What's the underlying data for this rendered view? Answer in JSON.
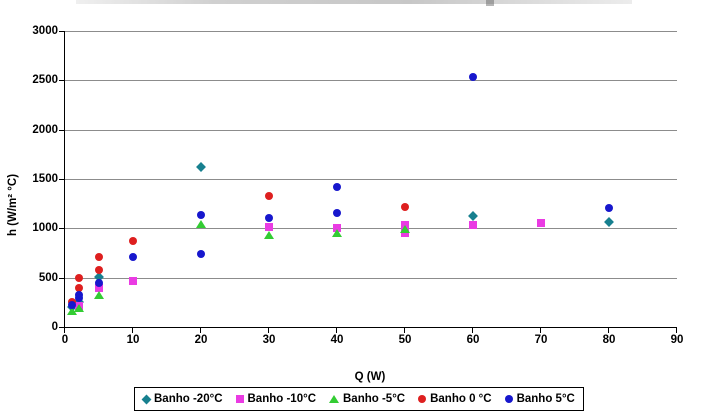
{
  "chart_data": {
    "type": "scatter",
    "xlabel": "Q (W)",
    "ylabel": "h (W/m² °C)",
    "xlim": [
      0,
      90
    ],
    "ylim": [
      0,
      3000
    ],
    "xticks": [
      0,
      10,
      20,
      30,
      40,
      50,
      60,
      70,
      80,
      90
    ],
    "yticks": [
      0,
      500,
      1000,
      1500,
      2000,
      2500,
      3000
    ],
    "grid": "horizontal gridlines every 500",
    "gridline_color": "#8c8c8c",
    "axis_color": "#000000",
    "legend_position": "bottom",
    "series": [
      {
        "name": "Banho -20°C",
        "marker": "diamond",
        "color": "#17808F",
        "points": [
          [
            1,
            200
          ],
          [
            2,
            255
          ],
          [
            5,
            505
          ],
          [
            20,
            1620
          ],
          [
            60,
            1130
          ],
          [
            80,
            1060
          ]
        ]
      },
      {
        "name": "Banho -10°C",
        "marker": "square",
        "color": "#EA3BE3",
        "points": [
          [
            2,
            210
          ],
          [
            5,
            395
          ],
          [
            10,
            470
          ],
          [
            30,
            1010
          ],
          [
            40,
            1000
          ],
          [
            50,
            1030
          ],
          [
            50,
            950
          ],
          [
            60,
            1030
          ],
          [
            70,
            1050
          ]
        ]
      },
      {
        "name": "Banho -5°C",
        "marker": "triangle",
        "color": "#33CC33",
        "points": [
          [
            1,
            160
          ],
          [
            2,
            195
          ],
          [
            5,
            325
          ],
          [
            20,
            1040
          ],
          [
            30,
            935
          ],
          [
            40,
            950
          ],
          [
            50,
            990
          ]
        ]
      },
      {
        "name": "Banho 0 °C",
        "marker": "circle",
        "color": "#DE1F1F",
        "points": [
          [
            1,
            250
          ],
          [
            2,
            495
          ],
          [
            2,
            395
          ],
          [
            5,
            710
          ],
          [
            5,
            580
          ],
          [
            10,
            875
          ],
          [
            30,
            1330
          ],
          [
            50,
            1215
          ]
        ]
      },
      {
        "name": "Banho 5°C",
        "marker": "circle",
        "color": "#1717CD",
        "points": [
          [
            1,
            225
          ],
          [
            2,
            325
          ],
          [
            2,
            290
          ],
          [
            5,
            445
          ],
          [
            10,
            705
          ],
          [
            20,
            1135
          ],
          [
            20,
            745
          ],
          [
            30,
            1105
          ],
          [
            40,
            1415
          ],
          [
            40,
            1160
          ],
          [
            60,
            2530
          ],
          [
            80,
            1210
          ]
        ]
      }
    ]
  }
}
